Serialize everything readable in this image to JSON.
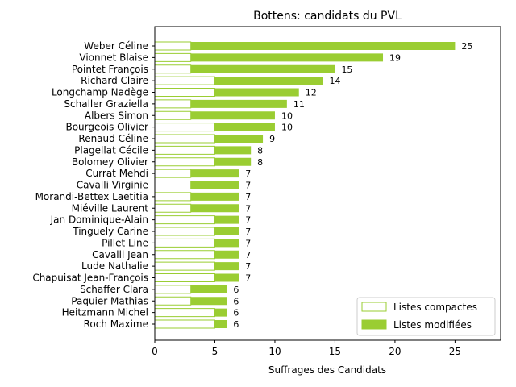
{
  "chart_data": {
    "type": "bar",
    "orientation": "horizontal",
    "stacked": true,
    "title": "Bottens: candidats du PVL",
    "xlabel": "Suffrages des Candidats",
    "ylabel": "",
    "xlim": [
      0,
      28.8
    ],
    "xticks": [
      "0",
      "5",
      "10",
      "15",
      "20",
      "25"
    ],
    "legend_position": "lower-right",
    "categories": [
      "Weber Céline",
      "Vionnet Blaise",
      "Pointet François",
      "Richard Claire",
      "Longchamp Nadège",
      "Schaller Graziella",
      "Albers Simon",
      "Bourgeois Olivier",
      "Renaud Céline",
      "Plagellat Cécile",
      "Bolomey Olivier",
      "Currat Mehdi",
      "Cavalli Virginie",
      "Morandi-Bettex Laetitia",
      "Miéville Laurent",
      "Jan Dominique-Alain",
      "Tinguely Carine",
      "Pillet Line",
      "Cavalli Jean",
      "Lude Nathalie",
      "Chapuisat Jean-François",
      "Schaffer Clara",
      "Paquier Mathias",
      "Heitzmann Michel",
      "Roch Maxime"
    ],
    "series": [
      {
        "name": "Listes compactes",
        "color": "#ffffff",
        "edgecolor": "#9acd32",
        "values": [
          3,
          3,
          3,
          5,
          5,
          3,
          3,
          5,
          5,
          5,
          5,
          3,
          3,
          3,
          3,
          5,
          5,
          5,
          5,
          5,
          5,
          3,
          3,
          5,
          5
        ]
      },
      {
        "name": "Listes modifiées",
        "color": "#9acd32",
        "values": [
          22,
          16,
          12,
          9,
          7,
          8,
          7,
          5,
          4,
          3,
          3,
          4,
          4,
          4,
          4,
          2,
          2,
          2,
          2,
          2,
          2,
          3,
          3,
          1,
          1
        ]
      }
    ],
    "totals": [
      25,
      19,
      15,
      14,
      12,
      11,
      10,
      10,
      9,
      8,
      8,
      7,
      7,
      7,
      7,
      7,
      7,
      7,
      7,
      7,
      7,
      6,
      6,
      6,
      6
    ]
  }
}
